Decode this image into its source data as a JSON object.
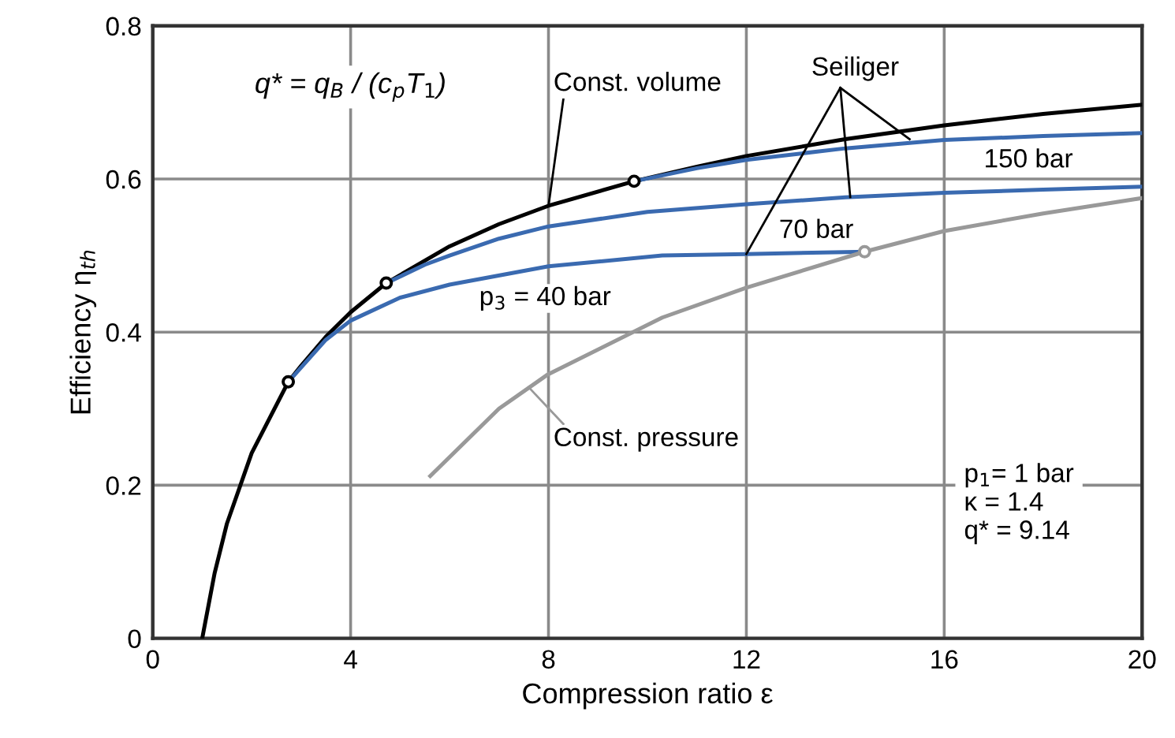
{
  "chart_data": {
    "type": "line",
    "xlabel": "Compression ratio ε",
    "ylabel": "Efficiency η$_{th}$",
    "xlim": [
      0,
      20
    ],
    "xticks": [
      0,
      4,
      8,
      12,
      16,
      20
    ],
    "ylim": [
      0,
      0.8
    ],
    "yticks": [
      0,
      0.2,
      0.4,
      0.6,
      0.8
    ],
    "grid": true,
    "series": [
      {
        "name": "Const. volume",
        "color": "#000000",
        "x": [
          1,
          1.25,
          1.5,
          2,
          2.74,
          3,
          3.5,
          4,
          4.72,
          6,
          7,
          8,
          9.73,
          11,
          12,
          14,
          16,
          18,
          20
        ],
        "values": [
          0,
          0.085,
          0.15,
          0.242,
          0.335,
          0.356,
          0.394,
          0.426,
          0.464,
          0.512,
          0.541,
          0.565,
          0.597,
          0.616,
          0.63,
          0.652,
          0.67,
          0.685,
          0.697
        ]
      },
      {
        "name": "150 bar",
        "color": "#3a6ab0",
        "x": [
          9.73,
          11,
          12,
          14,
          16,
          18,
          20
        ],
        "values": [
          0.597,
          0.614,
          0.625,
          0.64,
          0.651,
          0.656,
          0.66
        ]
      },
      {
        "name": "70 bar",
        "color": "#3a6ab0",
        "x": [
          4.72,
          5.5,
          6,
          7,
          8,
          10,
          12,
          14,
          16,
          18,
          20
        ],
        "values": [
          0.464,
          0.488,
          0.5,
          0.522,
          0.538,
          0.557,
          0.567,
          0.576,
          0.582,
          0.586,
          0.59
        ]
      },
      {
        "name": "p$_{3}$ = 40 bar",
        "color": "#3a6ab0",
        "x": [
          2.74,
          3.5,
          4,
          5,
          6,
          8,
          10.3,
          12,
          14.39
        ],
        "values": [
          0.335,
          0.39,
          0.415,
          0.445,
          0.462,
          0.486,
          0.5,
          0.502,
          0.505
        ]
      },
      {
        "name": "Const. pressure",
        "color": "#999999",
        "x": [
          5.61,
          7,
          7.97,
          10.3,
          12,
          14.39,
          16,
          18,
          20
        ],
        "values": [
          0.212,
          0.3,
          0.344,
          0.419,
          0.458,
          0.505,
          0.532,
          0.555,
          0.575
        ]
      },
      {
        "type": "scatter",
        "marker": "circle",
        "colors": [
          "#000000",
          "#000000",
          "#000000",
          "#999999"
        ],
        "x": [
          2.74,
          4.72,
          9.73,
          14.39
        ],
        "values": [
          0.335,
          0.464,
          0.597,
          0.505
        ]
      }
    ],
    "annotations": [
      "q* = q$_{B}$ / (c$_{p}$T$_{1}$)",
      "p$_{1}$= 1 bar\nκ = 1.4\nq* = 9.14",
      {
        "text": "Seiliger",
        "x": 15.3,
        "y": 0.652
      }
    ]
  }
}
